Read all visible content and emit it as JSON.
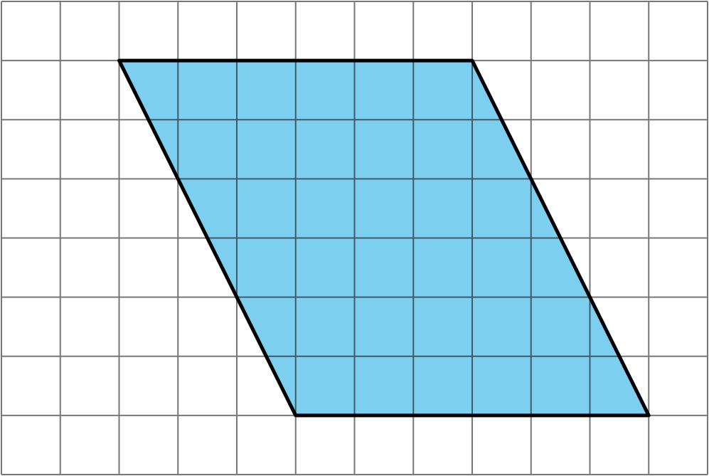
{
  "diagram": {
    "grid": {
      "columns": 12,
      "rows": 8,
      "line_color": "#777777"
    },
    "parallelogram": {
      "vertices_grid_units": [
        [
          2,
          1
        ],
        [
          8,
          1
        ],
        [
          11,
          7
        ],
        [
          5,
          7
        ]
      ],
      "fill_color": "#7dcfef",
      "edge_color": "#000000",
      "interior_grid_line_color": "#3f5a66"
    }
  }
}
